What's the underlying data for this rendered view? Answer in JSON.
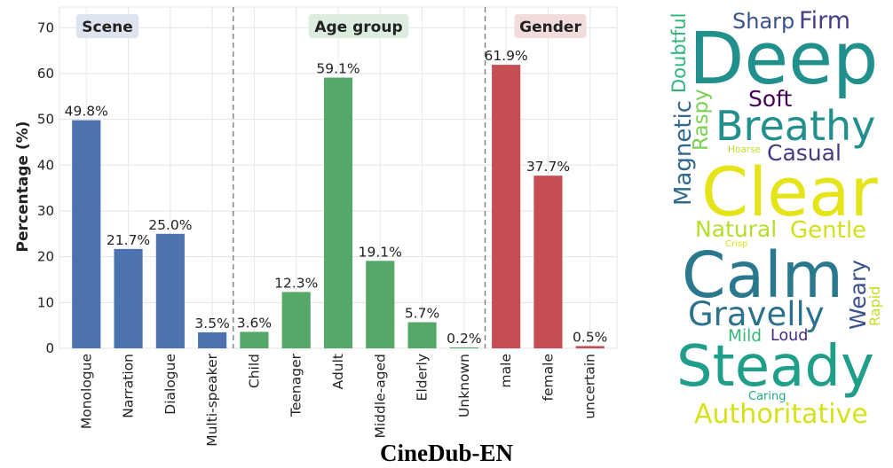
{
  "figure_title": "CineDub-EN",
  "chart_data": {
    "type": "bar",
    "title": "",
    "xlabel": "",
    "ylabel": "Percentage (%)",
    "ylim": [
      0,
      74.5
    ],
    "yticks": [
      0,
      10,
      20,
      30,
      40,
      50,
      60,
      70
    ],
    "grid": true,
    "categories": [
      "Monologue",
      "Narration",
      "Dialogue",
      "Multi-speaker",
      "Child",
      "Teenager",
      "Adult",
      "Middle-aged",
      "Elderly",
      "Unknown",
      "male",
      "female",
      "uncertain"
    ],
    "values": [
      49.8,
      21.7,
      25.0,
      3.5,
      3.6,
      12.3,
      59.1,
      19.1,
      5.7,
      0.2,
      61.9,
      37.7,
      0.5
    ],
    "data_labels": [
      "49.8%",
      "21.7%",
      "25.0%",
      "3.5%",
      "3.6%",
      "12.3%",
      "59.1%",
      "19.1%",
      "5.7%",
      "0.2%",
      "61.9%",
      "37.7%",
      "0.5%"
    ],
    "groups": [
      {
        "name": "Scene",
        "start": 0,
        "end": 3,
        "color": "#4c72b0",
        "label_bg": "#dde3ef"
      },
      {
        "name": "Age group",
        "start": 4,
        "end": 9,
        "color": "#55a868",
        "label_bg": "#dcecdf"
      },
      {
        "name": "Gender",
        "start": 10,
        "end": 12,
        "color": "#c44e52",
        "label_bg": "#f1dcdc"
      }
    ]
  },
  "word_cloud": {
    "words": [
      {
        "text": "Sharp",
        "color": "#3b528b"
      },
      {
        "text": "Firm",
        "color": "#433e85"
      },
      {
        "text": "Deep",
        "color": "#21908d"
      },
      {
        "text": "Doubtful",
        "color": "#2fb47c"
      },
      {
        "text": "Soft",
        "color": "#440154"
      },
      {
        "text": "Raspy",
        "color": "#7ad151"
      },
      {
        "text": "Magnetic",
        "color": "#31688e"
      },
      {
        "text": "Breathy",
        "color": "#21908d"
      },
      {
        "text": "Hoarse",
        "color": "#bddf26"
      },
      {
        "text": "Casual",
        "color": "#443983"
      },
      {
        "text": "Clear",
        "color": "#e5e419"
      },
      {
        "text": "Natural",
        "color": "#b5de2b"
      },
      {
        "text": "Gentle",
        "color": "#d0e11c"
      },
      {
        "text": "Crisp",
        "color": "#d8e219"
      },
      {
        "text": "Calm",
        "color": "#2a788e"
      },
      {
        "text": "Weary",
        "color": "#3b528b"
      },
      {
        "text": "Rapid",
        "color": "#c2df23"
      },
      {
        "text": "Gravelly",
        "color": "#2c728e"
      },
      {
        "text": "Mild",
        "color": "#35b779"
      },
      {
        "text": "Loud",
        "color": "#482878"
      },
      {
        "text": "Steady",
        "color": "#1f9e89"
      },
      {
        "text": "Caring",
        "color": "#22a884"
      },
      {
        "text": "Authoritative",
        "color": "#d5e21a"
      }
    ]
  }
}
